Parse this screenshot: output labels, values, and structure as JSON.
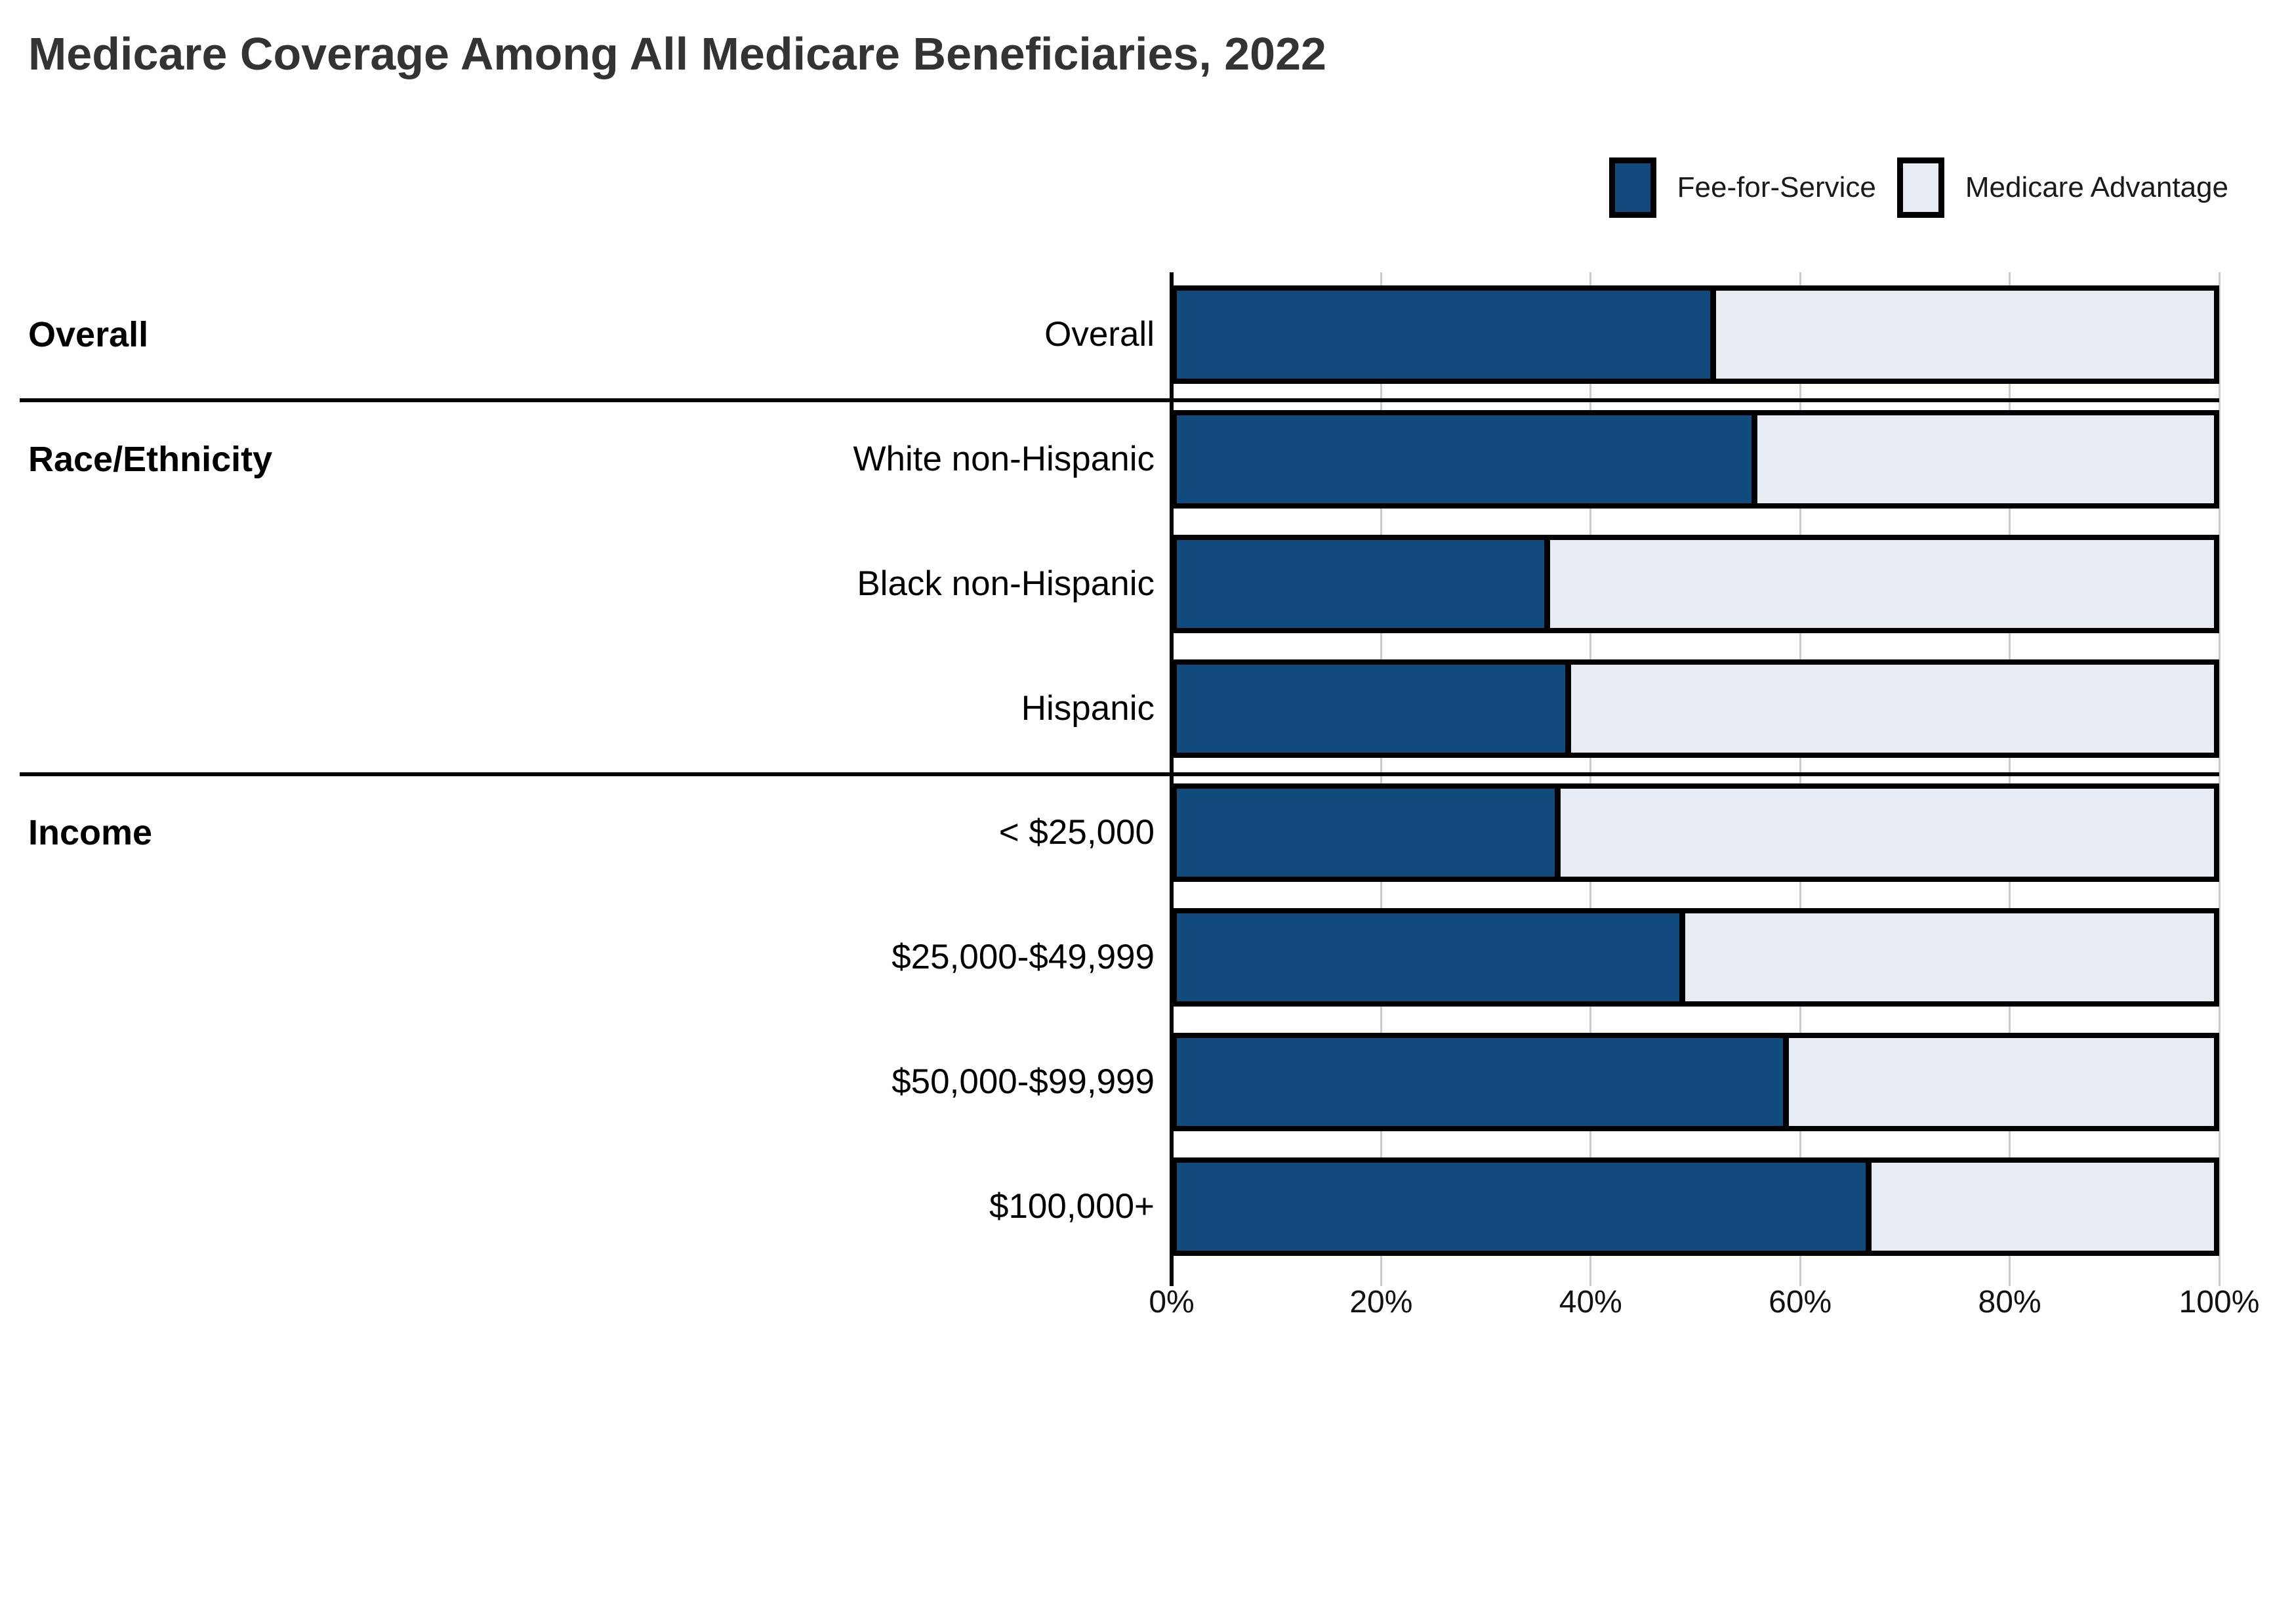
{
  "title": "Medicare Coverage Among All Medicare Beneficiaries, 2022",
  "legend": {
    "items": [
      {
        "label": "Fee-for-Service"
      },
      {
        "label": "Medicare Advantage"
      }
    ]
  },
  "colors": {
    "fee_for_service": "#114A7C",
    "medicare_advantage": "#E7EBF3",
    "bar_border": "#000000",
    "gridline": "#CBCBCB",
    "axis": "#000000",
    "separator": "#000000",
    "title_text": "#333333",
    "label_text": "#000000",
    "tick_text": "#111111"
  },
  "chart_data": {
    "type": "bar",
    "stacked": true,
    "orientation": "horizontal",
    "title": "Medicare Coverage Among All Medicare Beneficiaries, 2022",
    "xlabel": "",
    "ylabel": "",
    "x_axis": {
      "min": 0,
      "max": 100,
      "ticks": [
        "0%",
        "20%",
        "40%",
        "60%",
        "80%",
        "100%"
      ],
      "grid": true
    },
    "legend_position": "top-right",
    "categories": [
      "Overall",
      "White non-Hispanic",
      "Black non-Hispanic",
      "Hispanic",
      "< $25,000",
      "$25,000-$49,999",
      "$50,000-$99,999",
      "$100,000+"
    ],
    "series": [
      {
        "name": "Fee-for-Service",
        "values": [
          52,
          56,
          36,
          38,
          37,
          49,
          59,
          67
        ]
      },
      {
        "name": "Medicare Advantage",
        "values": [
          48,
          44,
          64,
          62,
          63,
          51,
          41,
          33
        ]
      }
    ],
    "groups": [
      {
        "label": "Overall",
        "rows": [
          {
            "label": "Overall",
            "ffs": 52,
            "ma": 48
          }
        ]
      },
      {
        "label": "Race/Ethnicity",
        "rows": [
          {
            "label": "White non-Hispanic",
            "ffs": 56,
            "ma": 44
          },
          {
            "label": "Black non-Hispanic",
            "ffs": 36,
            "ma": 64
          },
          {
            "label": "Hispanic",
            "ffs": 38,
            "ma": 62
          }
        ]
      },
      {
        "label": "Income",
        "rows": [
          {
            "label": "< $25,000",
            "ffs": 37,
            "ma": 63
          },
          {
            "label": "$25,000-$49,999",
            "ffs": 49,
            "ma": 51
          },
          {
            "label": "$50,000-$99,999",
            "ffs": 59,
            "ma": 41
          },
          {
            "label": "$100,000+",
            "ffs": 67,
            "ma": 33
          }
        ]
      }
    ]
  }
}
